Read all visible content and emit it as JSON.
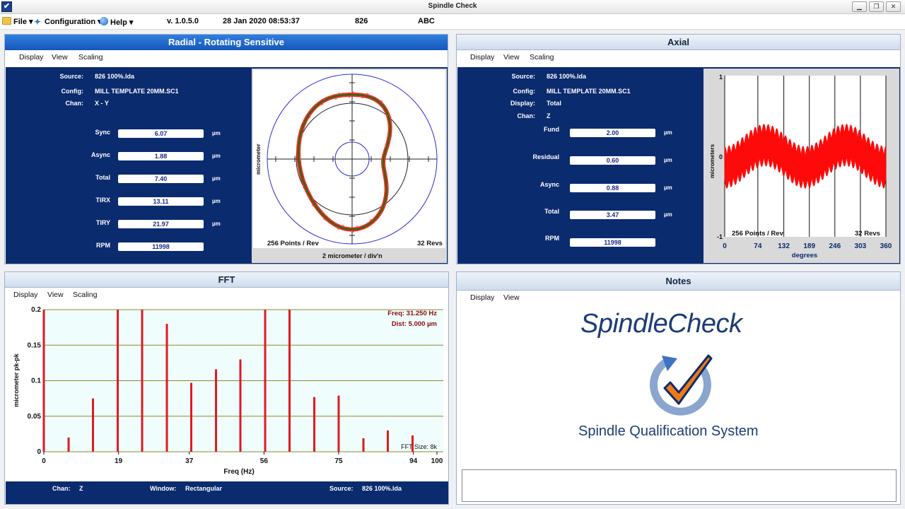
{
  "window": {
    "title": "Spindle Check"
  },
  "menubar": {
    "file": "File",
    "configuration": "Configuration",
    "help": "Help",
    "version": "v. 1.0.5.0",
    "datetime": "28 Jan 2020 08:53:37",
    "machine": "826",
    "operator": "ABC"
  },
  "radial": {
    "title": "Radial - Rotating Sensitive",
    "menu": [
      "Display",
      "View",
      "Scaling"
    ],
    "info": [
      {
        "label": "Source:",
        "value": "826 100%.lda"
      },
      {
        "label": "Config:",
        "value": "MILL TEMPLATE 20MM.SC1"
      },
      {
        "label": "Chan:",
        "value": "X - Y"
      }
    ],
    "metrics": [
      {
        "label": "Sync",
        "value": "6.07",
        "unit": "µm"
      },
      {
        "label": "Async",
        "value": "1.88",
        "unit": "µm"
      },
      {
        "label": "Total",
        "value": "7.40",
        "unit": "µm"
      },
      {
        "label": "TIRX",
        "value": "13.11",
        "unit": "µm"
      },
      {
        "label": "TIRY",
        "value": "21.97",
        "unit": "µm"
      },
      {
        "label": "RPM",
        "value": "11998",
        "unit": ""
      }
    ],
    "plot": {
      "ylabel": "micrometer",
      "points_label": "256 Points / Rev",
      "revs_label": "32 Revs",
      "scale_label": "2 micrometer / div'n"
    }
  },
  "axial": {
    "title": "Axial",
    "menu": [
      "Display",
      "View",
      "Scaling"
    ],
    "info": [
      {
        "label": "Source:",
        "value": "826 100%.lda"
      },
      {
        "label": "Config:",
        "value": "MILL TEMPLATE 20MM.SC1"
      },
      {
        "label": "Display:",
        "value": "Total"
      },
      {
        "label": "Chan:",
        "value": "Z"
      }
    ],
    "metrics": [
      {
        "label": "Fund",
        "value": "2.00",
        "unit": "µm"
      },
      {
        "label": "Residual",
        "value": "0.60",
        "unit": "µm"
      },
      {
        "label": "Async",
        "value": "0.88",
        "unit": "µm"
      },
      {
        "label": "Total",
        "value": "3.47",
        "unit": "µm"
      },
      {
        "label": "RPM",
        "value": "11998",
        "unit": ""
      }
    ],
    "plot": {
      "ylabel": "micrometers",
      "xlabel": "degrees",
      "xticks": [
        "0",
        "74",
        "132",
        "189",
        "246",
        "303",
        "360"
      ],
      "yticks": [
        "1",
        "0",
        "-1"
      ],
      "points_label": "256 Points / Rev",
      "revs_label": "32 Revs"
    }
  },
  "fft": {
    "title": "FFT",
    "menu": [
      "Display",
      "View",
      "Scaling"
    ],
    "freq_label": "Freq: 31.250 Hz",
    "dist_label": "Dist: 5.000 µm",
    "fft_size": "FFT Size: 8k",
    "status": {
      "chan_label": "Chan:",
      "chan": "Z",
      "window_label": "Window:",
      "window": "Rectangular",
      "source_label": "Source:",
      "source": "826 100%.lda"
    }
  },
  "chart_data": {
    "type": "bar",
    "xlabel": "Freq (Hz)",
    "ylabel": "micrometer pk-pk",
    "xlim": [
      0,
      100
    ],
    "ylim": [
      0,
      0.2
    ],
    "xticks": [
      "0",
      "19",
      "37",
      "56",
      "75",
      "94",
      "100"
    ],
    "yticks": [
      "0",
      "0.05",
      "0.1",
      "0.15",
      "0.2"
    ],
    "x": [
      0,
      6.3,
      12.5,
      18.8,
      25,
      31.3,
      37.5,
      43.8,
      50,
      56.3,
      62.5,
      68.8,
      75,
      81.3,
      87.5,
      93.8
    ],
    "values": [
      0.2,
      0.02,
      0.075,
      0.2,
      0.2,
      0.18,
      0.097,
      0.116,
      0.13,
      0.2,
      0.2,
      0.077,
      0.079,
      0.019,
      0.03,
      0.023
    ],
    "bar_color": "#dd1b22",
    "grid": true
  },
  "notes": {
    "title": "Notes",
    "menu": [
      "Display",
      "View"
    ],
    "logo_title": "SpindleCheck",
    "logo_subtitle": "Spindle Qualification System"
  }
}
